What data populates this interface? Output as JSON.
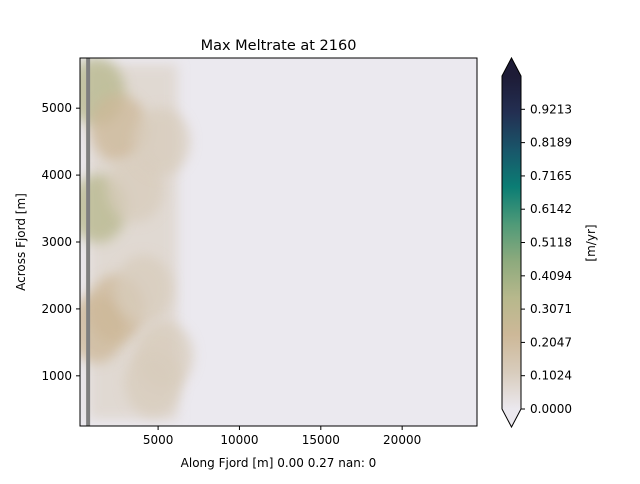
{
  "chart_data": {
    "type": "heatmap",
    "title": "Max Meltrate at 2160",
    "xlabel": "Along Fjord [m] 0.00 0.27 nan: 0",
    "ylabel": "Across Fjord [m]",
    "xlim": [
      200,
      24600
    ],
    "ylim": [
      250,
      5750
    ],
    "xticks": [
      5000,
      10000,
      15000,
      20000
    ],
    "yticks": [
      1000,
      2000,
      3000,
      4000,
      5000
    ],
    "xtick_labels": [
      "5000",
      "10000",
      "15000",
      "20000"
    ],
    "ytick_labels": [
      "1000",
      "2000",
      "3000",
      "4000",
      "5000"
    ],
    "grid": false,
    "wall_x": 700,
    "melt_region_x": [
      700,
      6200
    ],
    "hotspots": [
      {
        "x": 1200,
        "y": 5250,
        "value": 0.33
      },
      {
        "x": 1300,
        "y": 3500,
        "value": 0.33
      },
      {
        "x": 1200,
        "y": 1700,
        "value": 0.26
      },
      {
        "x": 2600,
        "y": 4700,
        "value": 0.2
      },
      {
        "x": 2400,
        "y": 2000,
        "value": 0.18
      },
      {
        "x": 3600,
        "y": 3800,
        "value": 0.16
      },
      {
        "x": 4100,
        "y": 2300,
        "value": 0.14
      },
      {
        "x": 5200,
        "y": 4500,
        "value": 0.12
      },
      {
        "x": 5400,
        "y": 1300,
        "value": 0.12
      },
      {
        "x": 4700,
        "y": 900,
        "value": 0.12
      }
    ],
    "colorbar": {
      "label": "[m/yr]",
      "vmin": 0.0,
      "vmax": 1.0237,
      "ticks": [
        0.0,
        0.1024,
        0.2047,
        0.3071,
        0.4094,
        0.5118,
        0.6142,
        0.7165,
        0.8189,
        0.9213
      ],
      "tick_labels": [
        "0.0000",
        "0.1024",
        "0.2047",
        "0.3071",
        "0.4094",
        "0.5118",
        "0.6142",
        "0.7165",
        "0.8189",
        "0.9213"
      ],
      "extend": "both",
      "colors": [
        "#ebe8ee",
        "#d8ccbc",
        "#cdb898",
        "#b7b88c",
        "#8daa7d",
        "#4f9a78",
        "#0b7d74",
        "#19566a",
        "#232f52",
        "#1d1b36"
      ]
    }
  }
}
